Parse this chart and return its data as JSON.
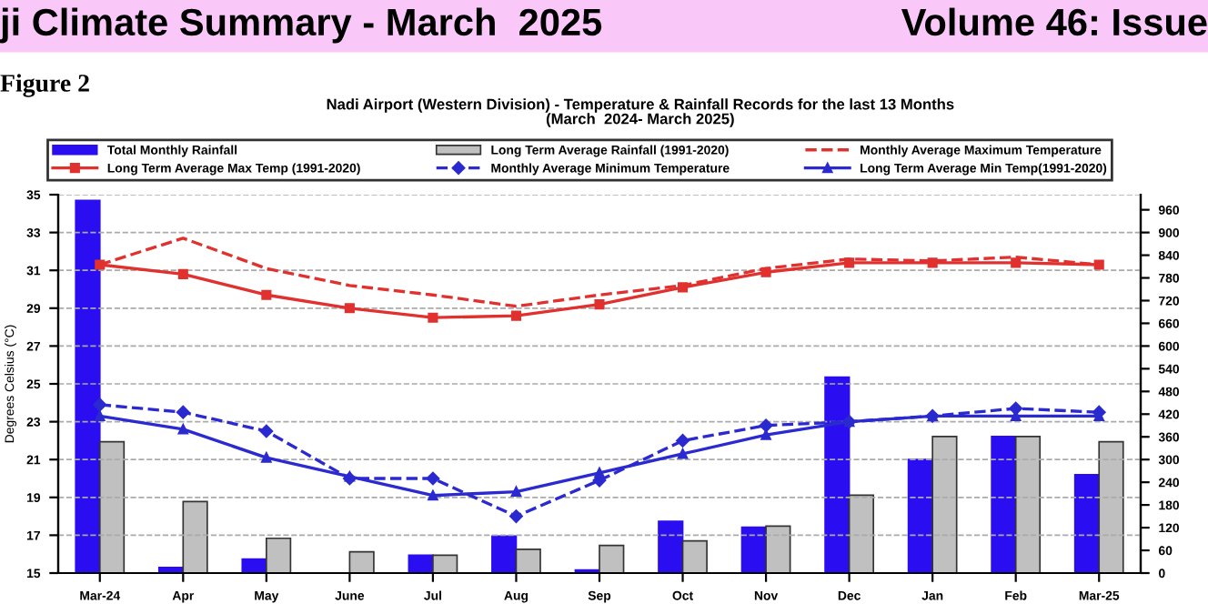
{
  "chart_data": {
    "type": "bar",
    "title": "Nadi Airport (Western Division) - Temperature & Rainfall Records for the last 13 Months",
    "subtitle": "(March  2024- March 2025)",
    "annotations": [
      "ji Climate Summary - March  2025",
      "Volume 46: Issue",
      "Figure 2"
    ],
    "ylabel": "Degrees Celsius (°C)",
    "categories": [
      "Mar-24",
      "Apr",
      "May",
      "June",
      "Jul",
      "Aug",
      "Sep",
      "Oct",
      "Nov",
      "Dec",
      "Jan",
      "Feb",
      "Mar-25"
    ],
    "ylim": [
      15,
      35
    ],
    "yticks": [
      15,
      17,
      19,
      21,
      23,
      25,
      27,
      29,
      31,
      33,
      35
    ],
    "y2lim": [
      0,
      1000
    ],
    "y2ticks": [
      0,
      60,
      120,
      180,
      240,
      300,
      360,
      420,
      480,
      540,
      600,
      660,
      720,
      780,
      840,
      900,
      960
    ],
    "grid": "y",
    "legend": "top",
    "series": [
      {
        "name": "Total Monthly Rainfall",
        "axis": "y2",
        "color": "#2a0df0",
        "values": [
          985,
          15,
          37,
          0,
          47,
          98,
          8,
          137,
          121,
          518,
          300,
          361,
          260
        ]
      },
      {
        "name": "Long Term Average Rainfall (1991-2020)",
        "axis": "y2",
        "color": "#c0c0c0",
        "values": [
          347,
          189,
          92,
          56,
          47,
          63,
          73,
          85,
          124,
          206,
          361,
          361,
          347
        ]
      },
      {
        "name": "Monthly Average Maximum Temperature",
        "type": "line",
        "color": "#e0312f",
        "line_style": "dashed",
        "marker": "none",
        "values": [
          31.3,
          32.7,
          31.1,
          30.2,
          29.7,
          29.1,
          29.7,
          30.2,
          31.1,
          31.6,
          31.5,
          31.7,
          31.3
        ]
      },
      {
        "name": "Long Term Average Max Temp (1991-2020)",
        "type": "line",
        "color": "#e0312f",
        "line_style": "solid",
        "marker": "square",
        "values": [
          31.3,
          30.8,
          29.7,
          29.0,
          28.5,
          28.6,
          29.2,
          30.1,
          30.9,
          31.4,
          31.4,
          31.4,
          31.3
        ]
      },
      {
        "name": "Monthly Average Minimum Temperature",
        "type": "line",
        "color": "#2a2ad0",
        "line_style": "dashed",
        "marker": "diamond",
        "values": [
          23.9,
          23.5,
          22.5,
          20.0,
          20.0,
          18.0,
          19.9,
          22.0,
          22.8,
          23.0,
          23.3,
          23.7,
          23.5
        ]
      },
      {
        "name": "Long Term Average Min Temp(1991-2020)",
        "type": "line",
        "color": "#2a2ad0",
        "line_style": "solid",
        "marker": "triangle",
        "values": [
          23.3,
          22.6,
          21.1,
          20.1,
          19.1,
          19.3,
          20.3,
          21.3,
          22.3,
          23.0,
          23.3,
          23.3,
          23.3
        ]
      }
    ]
  }
}
